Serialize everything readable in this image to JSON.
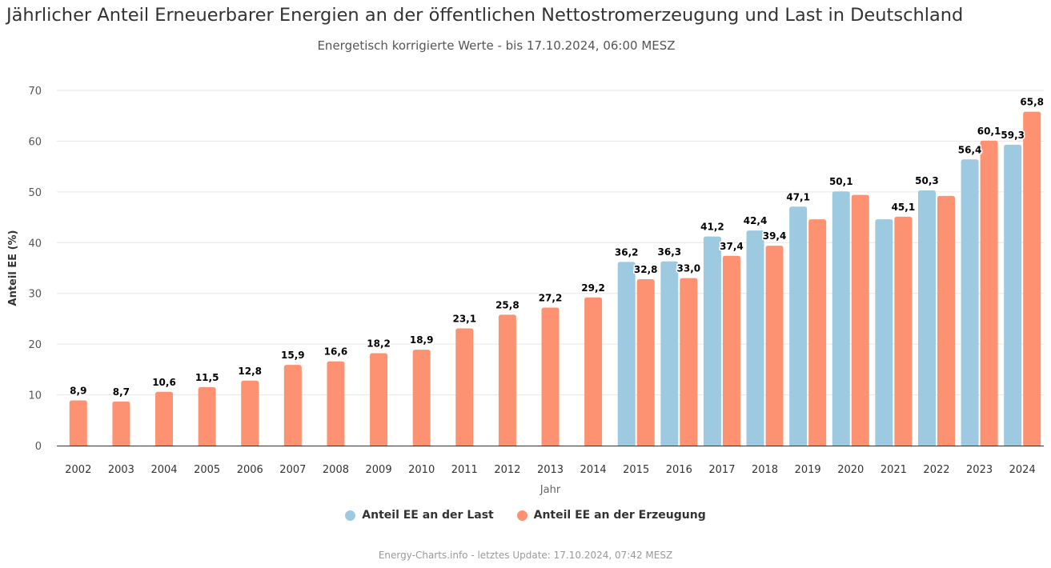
{
  "header": {
    "title": "Jährlicher Anteil Erneuerbarer Energien an der öffentlichen Nettostromerzeugung und Last in Deutschland",
    "subtitle": "Energetisch korrigierte Werte - bis 17.10.2024, 06:00 MESZ"
  },
  "footer": {
    "credits": "Energy-Charts.info - letztes Update: 17.10.2024, 07:42 MESZ"
  },
  "chart_data": {
    "type": "bar",
    "title": "Jährlicher Anteil Erneuerbarer Energien an der öffentlichen Nettostromerzeugung und Last in Deutschland",
    "subtitle": "Energetisch korrigierte Werte - bis 17.10.2024, 06:00 MESZ",
    "xlabel": "Jahr",
    "ylabel": "Anteil EE (%)",
    "ylim": [
      0,
      70
    ],
    "yticks": [
      0,
      10,
      20,
      30,
      40,
      50,
      60,
      70
    ],
    "grid": true,
    "legend_position": "bottom-center",
    "categories": [
      "2002",
      "2003",
      "2004",
      "2005",
      "2006",
      "2007",
      "2008",
      "2009",
      "2010",
      "2011",
      "2012",
      "2013",
      "2014",
      "2015",
      "2016",
      "2017",
      "2018",
      "2019",
      "2020",
      "2021",
      "2022",
      "2023",
      "2024"
    ],
    "series": [
      {
        "name": "Anteil EE an der Last",
        "color": "#9ecae1",
        "values": [
          null,
          null,
          null,
          null,
          null,
          null,
          null,
          null,
          null,
          null,
          null,
          null,
          null,
          36.2,
          36.3,
          41.2,
          42.4,
          47.1,
          50.1,
          44.6,
          50.3,
          56.4,
          59.3
        ],
        "labels": [
          null,
          null,
          null,
          null,
          null,
          null,
          null,
          null,
          null,
          null,
          null,
          null,
          null,
          "36,2",
          "36,3",
          "41,2",
          "42,4",
          "47,1",
          "50,1",
          null,
          "50,3",
          "56,4",
          "59,3"
        ]
      },
      {
        "name": "Anteil EE an der Erzeugung",
        "color": "#fc9272",
        "values": [
          8.9,
          8.7,
          10.6,
          11.5,
          12.8,
          15.9,
          16.6,
          18.2,
          18.9,
          23.1,
          25.8,
          27.2,
          29.2,
          32.8,
          33.0,
          37.4,
          39.4,
          44.6,
          49.4,
          45.1,
          49.2,
          60.1,
          65.8
        ],
        "labels": [
          "8,9",
          "8,7",
          "10,6",
          "11,5",
          "12,8",
          "15,9",
          "16,6",
          "18,2",
          "18,9",
          "23,1",
          "25,8",
          "27,2",
          "29,2",
          "32,8",
          "33,0",
          "37,4",
          "39,4",
          null,
          null,
          "45,1",
          null,
          "60,1",
          "65,8"
        ]
      }
    ]
  }
}
